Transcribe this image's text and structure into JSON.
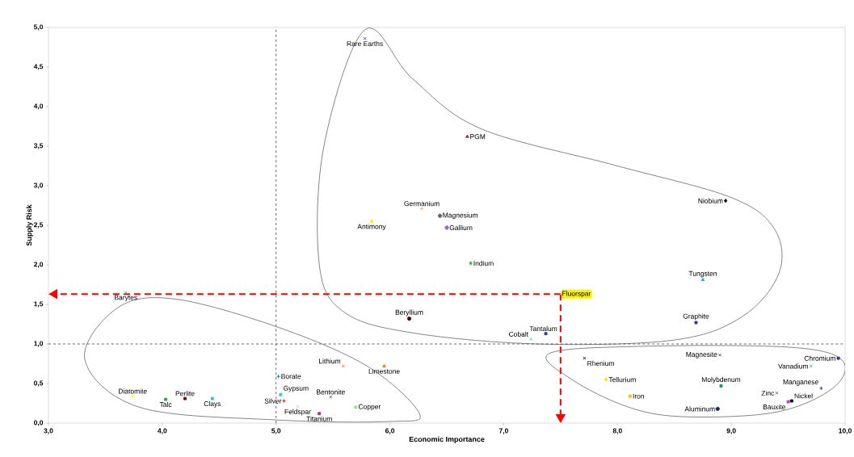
{
  "chart_data": {
    "type": "scatter",
    "xlabel": "Economic Importance",
    "ylabel": "Supply Risk",
    "xlim": [
      3,
      10
    ],
    "ylim": [
      0,
      5
    ],
    "xticks": [
      {
        "value": 3,
        "label": "3,0"
      },
      {
        "value": 4,
        "label": "4,0"
      },
      {
        "value": 5,
        "label": "5,0"
      },
      {
        "value": 6,
        "label": "6,0"
      },
      {
        "value": 7,
        "label": "7,0"
      },
      {
        "value": 8,
        "label": "8,0"
      },
      {
        "value": 9,
        "label": "9,0"
      },
      {
        "value": 10,
        "label": "10,0"
      }
    ],
    "yticks": [
      {
        "value": 0,
        "label": "0,0"
      },
      {
        "value": 0.5,
        "label": "0,5"
      },
      {
        "value": 1,
        "label": "1,0"
      },
      {
        "value": 1.5,
        "label": "1,5"
      },
      {
        "value": 2,
        "label": "2,0"
      },
      {
        "value": 2.5,
        "label": "2,5"
      },
      {
        "value": 3,
        "label": "3,0"
      },
      {
        "value": 3.5,
        "label": "3,5"
      },
      {
        "value": 4,
        "label": "4,0"
      },
      {
        "value": 4.5,
        "label": "4,5"
      },
      {
        "value": 5,
        "label": "5,0"
      }
    ],
    "grid": false,
    "ref_lines": [
      {
        "axis": "x",
        "value": 5,
        "color": "#000000",
        "line_style": "dashed"
      },
      {
        "axis": "y",
        "value": 1,
        "color": "#000000",
        "line_style": "dashed"
      }
    ],
    "series": [
      {
        "name": "Rare Earths",
        "color": "#3333aa",
        "marker": "cross",
        "x": [
          5.78
        ],
        "values": [
          4.86
        ]
      },
      {
        "name": "PGM",
        "color": "#993366",
        "marker": "triangle",
        "x": [
          6.68
        ],
        "values": [
          3.62
        ]
      },
      {
        "name": "Germanium",
        "color": "#ffaa66",
        "marker": "plus",
        "x": [
          6.28
        ],
        "values": [
          2.71
        ]
      },
      {
        "name": "Magnesium",
        "color": "#666666",
        "marker": "circle",
        "x": [
          6.44
        ],
        "values": [
          2.62
        ]
      },
      {
        "name": "Gallium",
        "color": "#9966cc",
        "marker": "circle",
        "x": [
          6.5
        ],
        "values": [
          2.47
        ]
      },
      {
        "name": "Antimony",
        "color": "#ffee00",
        "marker": "triangle",
        "x": [
          5.84
        ],
        "values": [
          2.55
        ]
      },
      {
        "name": "Indium",
        "color": "#44aa44",
        "marker": "diamond",
        "x": [
          6.71
        ],
        "values": [
          2.02
        ]
      },
      {
        "name": "Niobium",
        "color": "#000000",
        "marker": "diamond",
        "x": [
          8.95
        ],
        "values": [
          2.81
        ]
      },
      {
        "name": "Tungsten",
        "color": "#22aacc",
        "marker": "triangle",
        "x": [
          8.75
        ],
        "values": [
          1.81
        ]
      },
      {
        "name": "Graphite",
        "color": "#333399",
        "marker": "square",
        "x": [
          8.69
        ],
        "values": [
          1.27
        ]
      },
      {
        "name": "Beryllium",
        "color": "#550000",
        "marker": "circle",
        "x": [
          6.17
        ],
        "values": [
          1.32
        ]
      },
      {
        "name": "Cobalt",
        "color": "#aaddff",
        "marker": "diamond",
        "x": [
          7.24
        ],
        "values": [
          1.06
        ]
      },
      {
        "name": "Tantalum",
        "color": "#333399",
        "marker": "square",
        "x": [
          7.37
        ],
        "values": [
          1.13
        ]
      },
      {
        "name": "Fluorspar",
        "color": "#ff99cc",
        "marker": "cross",
        "x": [
          7.5
        ],
        "values": [
          1.63
        ]
      },
      {
        "name": "Barytes",
        "color": "#33aadd",
        "marker": "cross",
        "x": [
          3.68
        ],
        "values": [
          1.65
        ]
      },
      {
        "name": "Diatomite",
        "color": "#ffff44",
        "marker": "triangle",
        "x": [
          3.74
        ],
        "values": [
          0.34
        ]
      },
      {
        "name": "Talc",
        "color": "#33aa33",
        "marker": "square",
        "x": [
          4.03
        ],
        "values": [
          0.3
        ]
      },
      {
        "name": "Perlite",
        "color": "#800000",
        "marker": "square",
        "x": [
          4.2
        ],
        "values": [
          0.31
        ]
      },
      {
        "name": "Clays",
        "color": "#33bbff",
        "marker": "square",
        "x": [
          4.44
        ],
        "values": [
          0.31
        ]
      },
      {
        "name": "Borate",
        "color": "#008080",
        "marker": "plus",
        "x": [
          5.02
        ],
        "values": [
          0.59
        ]
      },
      {
        "name": "Gypsum",
        "color": "#33cccc",
        "marker": "square",
        "x": [
          5.04
        ],
        "values": [
          0.36
        ]
      },
      {
        "name": "Silver",
        "color": "#ff0000",
        "marker": "plus",
        "x": [
          5.07
        ],
        "values": [
          0.28
        ]
      },
      {
        "name": "Feldspar",
        "color": "#99ccff",
        "marker": "cross",
        "x": [
          5.19
        ],
        "values": [
          0.21
        ]
      },
      {
        "name": "Titanium",
        "color": "#993399",
        "marker": "square",
        "x": [
          5.38
        ],
        "values": [
          0.12
        ]
      },
      {
        "name": "Bentonite",
        "color": "#7030a0",
        "marker": "cross",
        "x": [
          5.48
        ],
        "values": [
          0.33
        ]
      },
      {
        "name": "Copper",
        "color": "#aad5a0",
        "marker": "square",
        "x": [
          5.7
        ],
        "values": [
          0.2
        ]
      },
      {
        "name": "Lithium",
        "color": "#ff6633",
        "marker": "cross",
        "x": [
          5.59
        ],
        "values": [
          0.72
        ]
      },
      {
        "name": "Limestone",
        "color": "#ff8000",
        "marker": "triangle",
        "x": [
          5.95
        ],
        "values": [
          0.72
        ]
      },
      {
        "name": "Rhenium",
        "color": "#000000",
        "marker": "cross",
        "x": [
          7.71
        ],
        "values": [
          0.82
        ]
      },
      {
        "name": "Tellurium",
        "color": "#ffdd00",
        "marker": "diamond",
        "x": [
          7.9
        ],
        "values": [
          0.55
        ]
      },
      {
        "name": "Iron",
        "color": "#ffbb00",
        "marker": "square",
        "x": [
          8.11
        ],
        "values": [
          0.34
        ]
      },
      {
        "name": "Magnesite",
        "color": "#333399",
        "marker": "cross",
        "x": [
          8.9
        ],
        "values": [
          0.86
        ]
      },
      {
        "name": "Molybdenum",
        "color": "#00a070",
        "marker": "square",
        "x": [
          8.91
        ],
        "values": [
          0.47
        ]
      },
      {
        "name": "Aluminum",
        "color": "#1f1f7a",
        "marker": "circle",
        "x": [
          8.88
        ],
        "values": [
          0.18
        ]
      },
      {
        "name": "Zinc",
        "color": "#993344",
        "marker": "cross",
        "x": [
          9.4
        ],
        "values": [
          0.38
        ]
      },
      {
        "name": "Manganese",
        "color": "#333399",
        "marker": "plus",
        "x": [
          9.79
        ],
        "values": [
          0.44
        ]
      },
      {
        "name": "Vanadium",
        "color": "#339966",
        "marker": "cross",
        "x": [
          9.7
        ],
        "values": [
          0.72
        ]
      },
      {
        "name": "Chromium",
        "color": "#333399",
        "marker": "square",
        "x": [
          9.94
        ],
        "values": [
          0.82
        ]
      },
      {
        "name": "Bauxite",
        "color": "#cc33cc",
        "marker": "square",
        "x": [
          9.5
        ],
        "values": [
          0.27
        ]
      },
      {
        "name": "Nickel",
        "color": "#000000",
        "marker": "square",
        "x": [
          9.53
        ],
        "values": [
          0.28
        ]
      }
    ]
  }
}
